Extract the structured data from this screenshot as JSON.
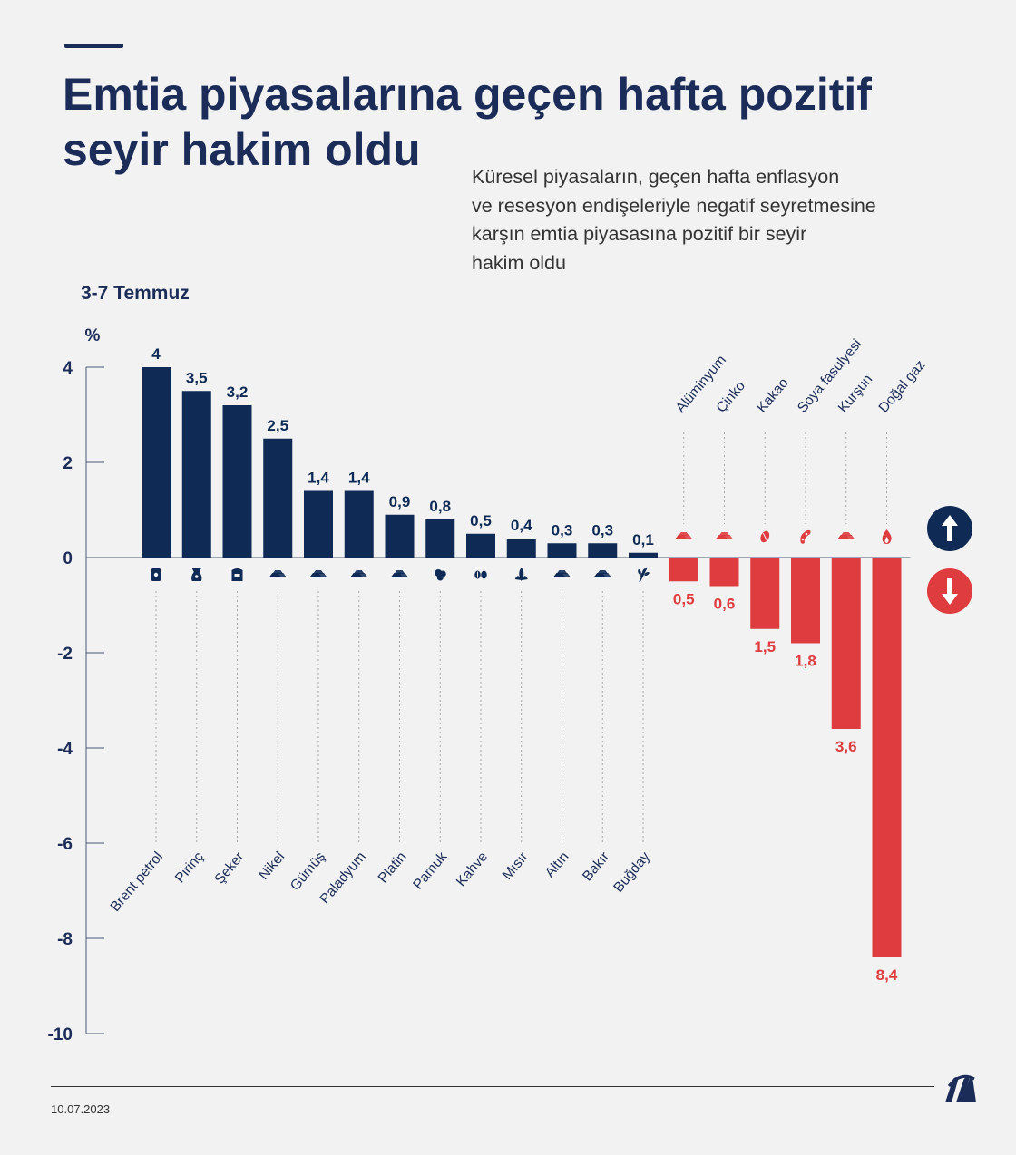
{
  "header": {
    "title_lines": [
      "Emtia piyasalarına geçen hafta pozitif",
      "seyir hakim oldu"
    ],
    "subtitle_lines": [
      "Küresel piyasaların, geçen hafta enflasyon",
      "ve resesyon endişeleriyle negatif seyretmesine",
      "karşın emtia piyasasına pozitif bir seyir",
      "hakim oldu"
    ]
  },
  "period_label": "3-7 Temmuz",
  "footer": {
    "date": "10.07.2023",
    "logo_text": "AA"
  },
  "colors": {
    "positive": "#0e2a55",
    "negative": "#de3c3e",
    "title": "#1b2c58",
    "background": "#f2f2f2"
  },
  "chart_data": {
    "type": "bar",
    "ylabel": "%",
    "ylim": [
      -10,
      4
    ],
    "yticks": [
      4,
      2,
      0,
      -2,
      -4,
      -6,
      -8,
      -10
    ],
    "categories": [
      "Brent petrol",
      "Pirinç",
      "Şeker",
      "Nikel",
      "Gümüş",
      "Paladyum",
      "Platin",
      "Pamuk",
      "Kahve",
      "Mısır",
      "Altın",
      "Bakır",
      "Buğday",
      "Alüminyum",
      "Çinko",
      "Kakao",
      "Soya fasulyesi",
      "Kurşun",
      "Doğal gaz"
    ],
    "values": [
      4,
      3.5,
      3.2,
      2.5,
      1.4,
      1.4,
      0.9,
      0.8,
      0.5,
      0.4,
      0.3,
      0.3,
      0.1,
      -0.5,
      -0.6,
      -1.5,
      -1.8,
      -3.6,
      -8.4
    ],
    "value_labels": [
      "4",
      "3,5",
      "3,2",
      "2,5",
      "1,4",
      "1,4",
      "0,9",
      "0,8",
      "0,5",
      "0,4",
      "0,3",
      "0,3",
      "0,1",
      "0,5",
      "0,6",
      "1,5",
      "1,8",
      "3,6",
      "8,4"
    ],
    "icons": [
      "oil-barrel-icon",
      "rice-sack-icon",
      "sugar-sack-icon",
      "metal-ingots-icon",
      "metal-ingots-icon",
      "metal-ingots-icon",
      "metal-ingots-icon",
      "cotton-icon",
      "coffee-beans-icon",
      "corn-icon",
      "metal-ingots-icon",
      "metal-ingots-icon",
      "wheat-icon",
      "metal-ingots-icon",
      "metal-ingots-icon",
      "cocoa-icon",
      "soybean-icon",
      "metal-ingots-icon",
      "gas-flame-icon"
    ],
    "legend": {
      "up_icon": "arrow-up-icon",
      "down_icon": "arrow-down-icon"
    }
  }
}
